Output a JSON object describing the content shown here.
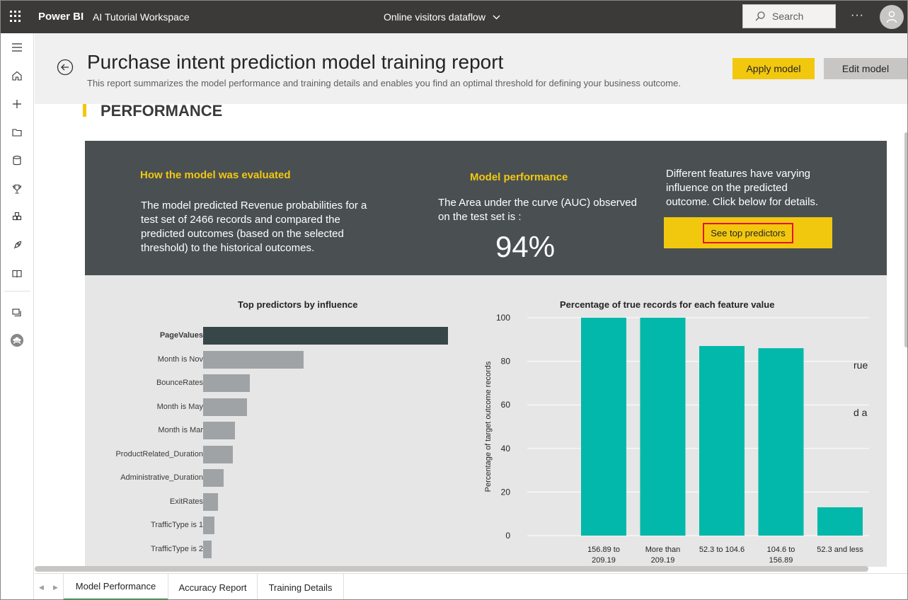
{
  "topbar": {
    "brand": "Power BI",
    "workspace": "AI Tutorial Workspace",
    "dataflow": "Online visitors dataflow",
    "search_placeholder": "Search",
    "more": "···"
  },
  "header": {
    "title": "Purchase intent prediction model training report",
    "subtitle": "This report summarizes the model performance and training details and enables you find an optimal threshold for defining your business outcome.",
    "apply_label": "Apply model",
    "edit_label": "Edit model"
  },
  "section": {
    "title": "PERFORMANCE"
  },
  "evaluation": {
    "heading": "How the model was evaluated",
    "text": "The model predicted Revenue probabilities for a test set of 2466 records and compared the predicted outcomes (based on the selected threshold) to the historical outcomes."
  },
  "performance": {
    "heading": "Model performance",
    "text": "The Area under the curve (AUC) observed on the test set is :",
    "auc": "94%"
  },
  "features": {
    "text": "Different features have varying influence on the predicted outcome.  Click below for details.",
    "button_label": "See top predictors"
  },
  "side_text": {
    "line1": "rue",
    "line2": "d a"
  },
  "colors": {
    "accent_yellow": "#f2c80f",
    "dark_panel": "#4a5052",
    "teal": "#01b8aa",
    "bar_dark": "#374649",
    "bar_grey": "#a0a3a5"
  },
  "tabs": [
    {
      "label": "Model Performance",
      "active": true
    },
    {
      "label": "Accuracy Report",
      "active": false
    },
    {
      "label": "Training Details",
      "active": false
    }
  ],
  "chart_data": [
    {
      "type": "bar",
      "orientation": "horizontal",
      "title": "Top predictors by influence",
      "categories": [
        "PageValues",
        "Month is Nov",
        "BounceRates",
        "Month is May",
        "Month is Mar",
        "ProductRelated_Duration",
        "Administrative_Duration",
        "ExitRates",
        "TrafficType is 1",
        "TrafficType is 2"
      ],
      "values": [
        1.0,
        0.41,
        0.19,
        0.18,
        0.13,
        0.12,
        0.085,
        0.06,
        0.045,
        0.035
      ],
      "highlighted": "PageValues"
    },
    {
      "type": "bar",
      "title": "Percentage of true records for each feature value",
      "ylabel": "Percentage of target outcome records",
      "xlabel": "",
      "categories": [
        "156.89 to 209.19",
        "More than 209.19",
        "52.3 to 104.6",
        "104.6 to 156.89",
        "52.3 and less"
      ],
      "values": [
        100,
        100,
        87,
        86,
        13
      ],
      "yticks": [
        0,
        20,
        40,
        60,
        80,
        100
      ],
      "ylim": [
        0,
        100
      ],
      "grid": true
    }
  ]
}
